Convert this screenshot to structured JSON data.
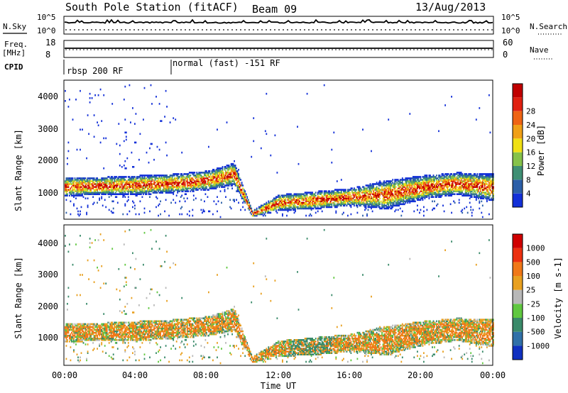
{
  "header": {
    "station": "South Pole Station (fitACF)",
    "beam": "Beam 09",
    "date": "13/Aug/2013"
  },
  "summary_panels": {
    "nsky": {
      "label": "N.Sky",
      "ticks": [
        "10^5",
        "10^0"
      ]
    },
    "nsearch": {
      "label": "N.Search",
      "ticks": [
        "10^5",
        "10^0"
      ]
    },
    "freq": {
      "label_line1": "Freq.",
      "label_line2": "[MHz]",
      "ticks": [
        "18",
        "8"
      ]
    },
    "nave": {
      "label": "Nave",
      "ticks": [
        "60",
        "0"
      ]
    },
    "cpid": {
      "label": "CPID",
      "segments": [
        {
          "text": "rbsp 200 RF",
          "start_hour": 0
        },
        {
          "text": "normal (fast) -151 RF",
          "start_hour": 6.0
        }
      ]
    }
  },
  "chart_data": [
    {
      "type": "heatmap",
      "title": "",
      "xlabel": "",
      "ylabel": "Slant Range [km]",
      "x_range_hours": [
        0,
        24
      ],
      "ylim": [
        180,
        4500
      ],
      "y_ticks": [
        "1000",
        "2000",
        "3000",
        "4000"
      ],
      "colorbar": {
        "label": "Power [dB]",
        "ticks": [
          "4",
          "8",
          "12",
          "16",
          "20",
          "24",
          "28"
        ],
        "colors": [
          "#1330d8",
          "#2c5fa8",
          "#3f8f74",
          "#86c24a",
          "#f0e014",
          "#f0a018",
          "#ef6414",
          "#e02010",
          "#c00000"
        ]
      },
      "echo_band_km_by_hour": [
        [
          0,
          850,
          1450
        ],
        [
          2,
          900,
          1450
        ],
        [
          4,
          900,
          1500
        ],
        [
          6,
          950,
          1550
        ],
        [
          8,
          1050,
          1650
        ],
        [
          9.5,
          1200,
          1900
        ],
        [
          10.5,
          200,
          400
        ],
        [
          12,
          400,
          900
        ],
        [
          14,
          450,
          1000
        ],
        [
          16,
          550,
          1100
        ],
        [
          18,
          450,
          1350
        ],
        [
          20,
          750,
          1500
        ],
        [
          22,
          900,
          1600
        ],
        [
          24,
          700,
          1550
        ]
      ]
    },
    {
      "type": "heatmap",
      "title": "",
      "xlabel": "Time UT",
      "ylabel": "Slant Range [km]",
      "x_range_hours": [
        0,
        24
      ],
      "x_ticks": [
        "00:00",
        "04:00",
        "08:00",
        "12:00",
        "16:00",
        "20:00",
        "00:00"
      ],
      "ylim": [
        180,
        4500
      ],
      "y_ticks": [
        "1000",
        "2000",
        "3000",
        "4000"
      ],
      "colorbar": {
        "label_html_unit": "m s",
        "label": "Velocity [m s-1]",
        "ticks": [
          "1000",
          "500",
          "100",
          "25",
          "-25",
          "-100",
          "-500",
          "-1000"
        ],
        "colors": [
          "#1030c0",
          "#3070a8",
          "#3a8a6a",
          "#60c840",
          "#b8b8b8",
          "#e8a020",
          "#f07818",
          "#ec3010",
          "#d00000"
        ]
      }
    }
  ],
  "time_axis": {
    "label": "Time UT"
  }
}
